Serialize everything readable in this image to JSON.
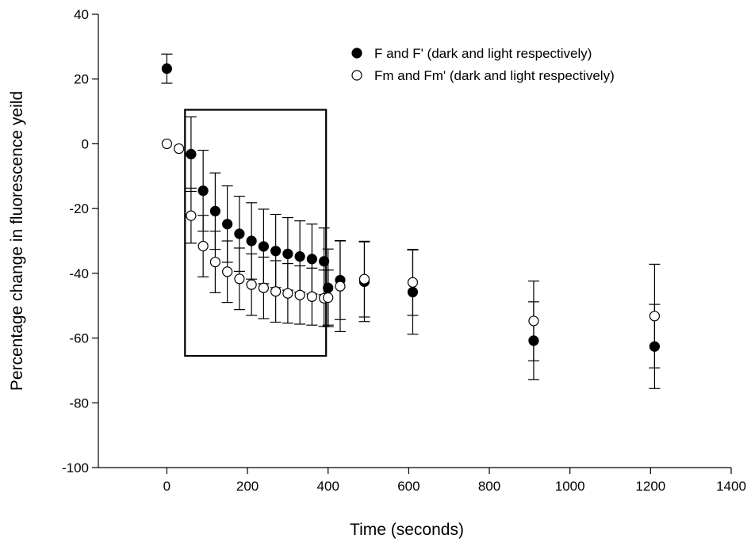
{
  "chart_data": {
    "type": "scatter",
    "xlabel": "Time (seconds)",
    "ylabel": "Percentage change in fluorescence yeild",
    "xlim": [
      -170,
      1400
    ],
    "ylim": [
      -100,
      40
    ],
    "xticks": [
      0,
      200,
      400,
      600,
      800,
      1000,
      1200,
      1400
    ],
    "yticks": [
      -100,
      -80,
      -60,
      -40,
      -20,
      0,
      20,
      40
    ],
    "grid": false,
    "legend_position": "top-right",
    "highlight_box": {
      "x_range": [
        45,
        395
      ],
      "y_range": [
        -65.5,
        10.5
      ]
    },
    "series": [
      {
        "name": "F and F' (dark and light respectively)",
        "marker": "filled-circle",
        "color": "#000000",
        "x": [
          0,
          60,
          90,
          120,
          150,
          180,
          210,
          240,
          270,
          300,
          330,
          360,
          390,
          400,
          430,
          490,
          610,
          910,
          1210
        ],
        "y": [
          23.2,
          -3.2,
          -14.5,
          -20.8,
          -24.8,
          -27.8,
          -30,
          -31.7,
          -33.1,
          -34,
          -34.8,
          -35.6,
          -36.3,
          -44.5,
          -42.1,
          -42.6,
          -45.8,
          -60.8,
          -62.6
        ],
        "error": [
          4.5,
          11.5,
          12.5,
          11.8,
          11.8,
          11.6,
          11.8,
          11.5,
          11.3,
          11.2,
          11,
          10.8,
          10.3,
          12,
          12.2,
          12.3,
          13,
          12,
          13
        ]
      },
      {
        "name": "Fm and Fm' (dark and light respectively)",
        "marker": "open-circle",
        "color": "#000000",
        "x": [
          0,
          30,
          60,
          90,
          120,
          150,
          180,
          210,
          240,
          270,
          300,
          330,
          360,
          390,
          400,
          430,
          490,
          610,
          910,
          1210
        ],
        "y": [
          0,
          -1.5,
          -22.2,
          -31.6,
          -36.5,
          -39.5,
          -41.7,
          -43.5,
          -44.5,
          -45.6,
          -46.2,
          -46.7,
          -47.2,
          -47.7,
          -47.5,
          -44,
          -41.8,
          -42.8,
          -54.7,
          -53.2
        ],
        "error": [
          0,
          0,
          8.5,
          9.5,
          9.5,
          9.5,
          9.5,
          9.5,
          9.5,
          9.5,
          9.2,
          9,
          8.8,
          8.7,
          8.5,
          14,
          11.7,
          10.2,
          12.3,
          16
        ]
      }
    ]
  }
}
